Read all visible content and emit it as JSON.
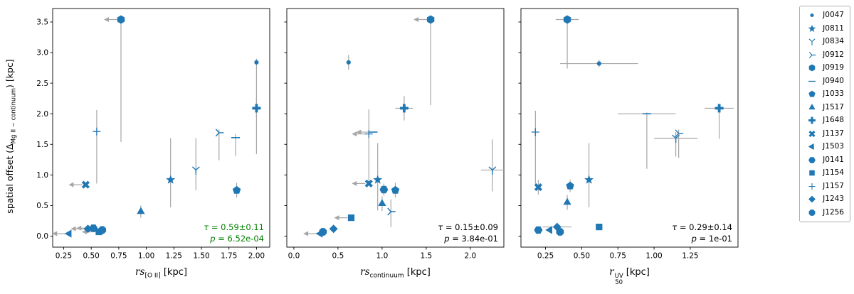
{
  "figure": {
    "ylabel": {
      "pre": "spatial offset (Δ",
      "sub": "Mg II − continuum",
      "post": ") [kpc]"
    },
    "marker_color": "#1f77b4",
    "errorbar_color": "#a6a6a6",
    "spine_color": "#000000"
  },
  "legend": {
    "entries": [
      {
        "id": "J0047",
        "marker": "circle"
      },
      {
        "id": "J0811",
        "marker": "star"
      },
      {
        "id": "J0834",
        "marker": "tri-down"
      },
      {
        "id": "J0912",
        "marker": "tri-left-y"
      },
      {
        "id": "J0919",
        "marker": "hexagon1"
      },
      {
        "id": "J0940",
        "marker": "hline"
      },
      {
        "id": "J1033",
        "marker": "pentagon"
      },
      {
        "id": "J1517",
        "marker": "triangle-up"
      },
      {
        "id": "J1648",
        "marker": "plus-filled"
      },
      {
        "id": "J1137",
        "marker": "x-filled"
      },
      {
        "id": "J1503",
        "marker": "triangle-left"
      },
      {
        "id": "J0141",
        "marker": "hexagon2"
      },
      {
        "id": "J1154",
        "marker": "square"
      },
      {
        "id": "J1157",
        "marker": "plus"
      },
      {
        "id": "J1243",
        "marker": "diamond"
      },
      {
        "id": "J1256",
        "marker": "octagon"
      }
    ]
  },
  "chart_data": [
    {
      "id": "rs-oii",
      "type": "scatter",
      "xlabel": {
        "main": "rs",
        "sub": "[O II]",
        "unit": " [kpc]"
      },
      "xlim": [
        0.15,
        2.12
      ],
      "ylim": [
        -0.18,
        3.72
      ],
      "xticks": {
        "values": [
          0.25,
          0.5,
          0.75,
          1.0,
          1.25,
          1.5,
          1.75,
          2.0
        ],
        "labels": [
          "0.25",
          "0.50",
          "0.75",
          "1.00",
          "1.25",
          "1.50",
          "1.75",
          "2.00"
        ]
      },
      "yticks": {
        "values": [
          0.0,
          0.5,
          1.0,
          1.5,
          2.0,
          2.5,
          3.0,
          3.5
        ],
        "labels": [
          "0.0",
          "0.5",
          "1.0",
          "1.5",
          "2.0",
          "2.5",
          "3.0",
          "3.5"
        ],
        "show_labels": true
      },
      "annotation": {
        "tau_sym": "τ",
        "tau_rest": " = 0.59±0.11",
        "p_sym": "p",
        "p_rest": " = 6.52e-04",
        "color": "#008000"
      },
      "points": [
        {
          "id": "J0919",
          "x": 0.77,
          "y": 3.54,
          "yerr": [
            2.0,
            0.02
          ],
          "xleft": true
        },
        {
          "id": "J0047",
          "x": 2.0,
          "y": 2.84,
          "yerr": [
            1.5,
            0.06
          ]
        },
        {
          "id": "J1648",
          "x": 2.0,
          "y": 2.09,
          "yerr": [
            0.15,
            0.18
          ],
          "xerr": [
            0.04,
            0.04
          ]
        },
        {
          "id": "J1157",
          "x": 0.55,
          "y": 1.71,
          "yerr": [
            0.85,
            0.35
          ]
        },
        {
          "id": "J0912",
          "x": 1.66,
          "y": 1.69,
          "yerr": [
            0.45,
            0.05
          ]
        },
        {
          "id": "J0940",
          "x": 1.81,
          "y": 1.61,
          "yerr": [
            0.3,
            0.06
          ]
        },
        {
          "id": "J0834",
          "x": 1.45,
          "y": 1.08,
          "yerr": [
            0.33,
            0.52
          ]
        },
        {
          "id": "J0811",
          "x": 1.22,
          "y": 0.92,
          "yerr": [
            0.45,
            0.68
          ]
        },
        {
          "id": "J1137",
          "x": 0.45,
          "y": 0.84,
          "xleft": true
        },
        {
          "id": "J1033",
          "x": 1.82,
          "y": 0.75,
          "yerr": [
            0.12,
            0.12
          ]
        },
        {
          "id": "J1517",
          "x": 0.95,
          "y": 0.4,
          "yerr": [
            0.1,
            0.1
          ]
        },
        {
          "id": "J0141",
          "x": 0.52,
          "y": 0.13,
          "xleft": true
        },
        {
          "id": "J1243",
          "x": 0.47,
          "y": 0.12,
          "xleft": true
        },
        {
          "id": "J1256",
          "x": 0.6,
          "y": 0.1,
          "xleft": true
        },
        {
          "id": "J1154",
          "x": 0.57,
          "y": 0.07,
          "xleft": true
        },
        {
          "id": "J1503",
          "x": 0.3,
          "y": 0.04,
          "xleft": true
        }
      ]
    },
    {
      "id": "rs-continuum",
      "type": "scatter",
      "xlabel": {
        "main": "rs",
        "sub": "continuum",
        "unit": " [kpc]"
      },
      "xlim": [
        -0.08,
        2.38
      ],
      "ylim": [
        -0.18,
        3.72
      ],
      "xticks": {
        "values": [
          0.0,
          0.5,
          1.0,
          1.5,
          2.0
        ],
        "labels": [
          "0.0",
          "0.5",
          "1.0",
          "1.5",
          "2.0"
        ]
      },
      "yticks": {
        "values": [
          0.0,
          0.5,
          1.0,
          1.5,
          2.0,
          2.5,
          3.0,
          3.5
        ],
        "labels": [
          "0.0",
          "0.5",
          "1.0",
          "1.5",
          "2.0",
          "2.5",
          "3.0",
          "3.5"
        ],
        "show_labels": false
      },
      "annotation": {
        "tau_sym": "τ",
        "tau_rest": " = 0.15±0.09",
        "p_sym": "p",
        "p_rest": " = 3.84e-01",
        "color": "#000000"
      },
      "points": [
        {
          "id": "J0919",
          "x": 1.55,
          "y": 3.54,
          "yerr": [
            1.4,
            0.02
          ],
          "xleft": true
        },
        {
          "id": "J0047",
          "x": 0.62,
          "y": 2.84,
          "yerr": [
            0.12,
            0.12
          ]
        },
        {
          "id": "J1648",
          "x": 1.25,
          "y": 2.09,
          "yerr": [
            0.2,
            0.2
          ],
          "xerr": [
            0.1,
            0.1
          ]
        },
        {
          "id": "J0940",
          "x": 0.9,
          "y": 1.7,
          "xleft": true
        },
        {
          "id": "J1157",
          "x": 0.85,
          "y": 1.67,
          "yerr": [
            0.8,
            0.4
          ],
          "xleft": true
        },
        {
          "id": "J0834",
          "x": 2.25,
          "y": 1.08,
          "yerr": [
            0.35,
            0.5
          ],
          "xerr": [
            0.13,
            0.13
          ]
        },
        {
          "id": "J0811",
          "x": 0.95,
          "y": 0.92,
          "yerr": [
            0.5,
            0.6
          ]
        },
        {
          "id": "J1137",
          "x": 0.85,
          "y": 0.86,
          "xleft": true
        },
        {
          "id": "J0141",
          "x": 1.02,
          "y": 0.76,
          "yerr": [
            0.1,
            0.1
          ]
        },
        {
          "id": "J1033",
          "x": 1.15,
          "y": 0.75,
          "yerr": [
            0.12,
            0.12
          ]
        },
        {
          "id": "J1517",
          "x": 1.0,
          "y": 0.53,
          "yerr": [
            0.12,
            0.12
          ]
        },
        {
          "id": "J0912",
          "x": 1.1,
          "y": 0.4,
          "yerr": [
            0.25,
            0.2
          ]
        },
        {
          "id": "J1154",
          "x": 0.65,
          "y": 0.3,
          "xleft": true
        },
        {
          "id": "J1243",
          "x": 0.45,
          "y": 0.12
        },
        {
          "id": "J1256",
          "x": 0.33,
          "y": 0.07
        },
        {
          "id": "J1503",
          "x": 0.3,
          "y": 0.04,
          "xleft": true
        }
      ]
    },
    {
      "id": "r50-uv",
      "type": "scatter",
      "xlabel": {
        "main": "r",
        "sup": "UV",
        "sub": "50",
        "unit": " [kpc]"
      },
      "xlim": [
        0.08,
        1.58
      ],
      "ylim": [
        -0.18,
        3.72
      ],
      "xticks": {
        "values": [
          0.25,
          0.5,
          0.75,
          1.0,
          1.25
        ],
        "labels": [
          "0.25",
          "0.50",
          "0.75",
          "1.00",
          "1.25"
        ]
      },
      "yticks": {
        "values": [
          0.0,
          0.5,
          1.0,
          1.5,
          2.0,
          2.5,
          3.0,
          3.5
        ],
        "labels": [
          "0.0",
          "0.5",
          "1.0",
          "1.5",
          "2.0",
          "2.5",
          "3.0",
          "3.5"
        ],
        "show_labels": false
      },
      "annotation": {
        "tau_sym": "τ",
        "tau_rest": " = 0.29±0.14",
        "p_sym": "p",
        "p_rest": " = 1e-01",
        "color": "#000000"
      },
      "points": [
        {
          "id": "J0919",
          "x": 0.4,
          "y": 3.54,
          "yerr": [
            0.8,
            0.02
          ],
          "xerr": [
            0.08,
            0.08
          ]
        },
        {
          "id": "J0047",
          "x": 0.62,
          "y": 2.82,
          "yerr": [
            0.06,
            0.06
          ],
          "xerr": [
            0.27,
            0.27
          ]
        },
        {
          "id": "J1648",
          "x": 1.45,
          "y": 2.09,
          "yerr": [
            0.5,
            0.06
          ],
          "xerr": [
            0.1,
            0.1
          ]
        },
        {
          "id": "J0940",
          "x": 0.95,
          "y": 2.0,
          "yerr": [
            0.9,
            0.02
          ],
          "xerr": [
            0.2,
            0.2
          ]
        },
        {
          "id": "J1157",
          "x": 0.18,
          "y": 1.7,
          "yerr": [
            0.85,
            0.35
          ]
        },
        {
          "id": "J0912",
          "x": 1.17,
          "y": 1.68,
          "yerr": [
            0.4,
            0.06
          ]
        },
        {
          "id": "J0834",
          "x": 1.15,
          "y": 1.6,
          "yerr": [
            0.3,
            0.1
          ],
          "xerr": [
            0.15,
            0.15
          ]
        },
        {
          "id": "J0811",
          "x": 0.55,
          "y": 0.92,
          "yerr": [
            0.45,
            0.6
          ]
        },
        {
          "id": "J1033",
          "x": 0.42,
          "y": 0.82,
          "yerr": [
            0.1,
            0.1
          ]
        },
        {
          "id": "J1137",
          "x": 0.2,
          "y": 0.8,
          "yerr": [
            0.12,
            0.12
          ]
        },
        {
          "id": "J1517",
          "x": 0.4,
          "y": 0.55,
          "yerr": [
            0.12,
            0.12
          ]
        },
        {
          "id": "J1243",
          "x": 0.33,
          "y": 0.15,
          "xerr": [
            0.1,
            0.1
          ]
        },
        {
          "id": "J1154",
          "x": 0.62,
          "y": 0.15
        },
        {
          "id": "J1503",
          "x": 0.28,
          "y": 0.1
        },
        {
          "id": "J0141",
          "x": 0.2,
          "y": 0.1
        },
        {
          "id": "J1256",
          "x": 0.35,
          "y": 0.07
        }
      ]
    }
  ]
}
